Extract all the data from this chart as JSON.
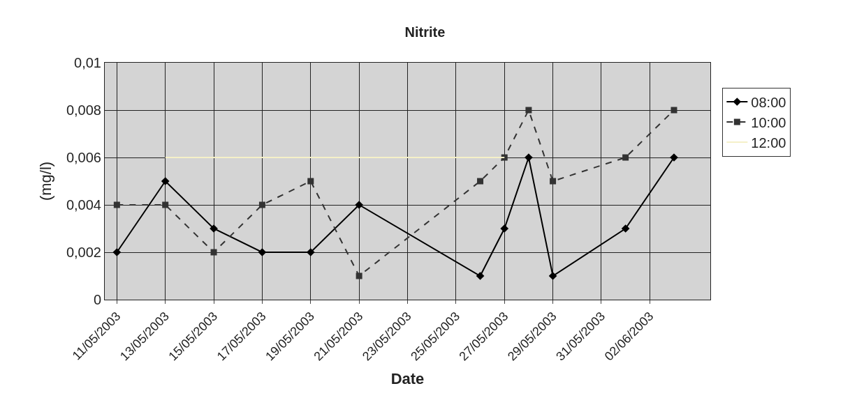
{
  "chart_data": {
    "type": "line",
    "title": "Nitrite",
    "xlabel": "Date",
    "ylabel": "(mg/l)",
    "xlim": [
      "2003-05-10T12:00",
      "2003-06-04T12:00"
    ],
    "xticks": [
      {
        "value": "2003-05-11",
        "label": "11/05/2003"
      },
      {
        "value": "2003-05-13",
        "label": "13/05/2003"
      },
      {
        "value": "2003-05-15",
        "label": "15/05/2003"
      },
      {
        "value": "2003-05-17",
        "label": "17/05/2003"
      },
      {
        "value": "2003-05-19",
        "label": "19/05/2003"
      },
      {
        "value": "2003-05-21",
        "label": "21/05/2003"
      },
      {
        "value": "2003-05-23",
        "label": "23/05/2003"
      },
      {
        "value": "2003-05-25",
        "label": "25/05/2003"
      },
      {
        "value": "2003-05-27",
        "label": "27/05/2003"
      },
      {
        "value": "2003-05-29",
        "label": "29/05/2003"
      },
      {
        "value": "2003-05-31",
        "label": "31/05/2003"
      },
      {
        "value": "2003-06-02",
        "label": "02/06/2003"
      }
    ],
    "ylim": [
      0,
      0.01
    ],
    "yticks": [
      0,
      {
        "value": 0.002,
        "label": "0,002"
      },
      {
        "value": 0.004,
        "label": "0,004"
      },
      {
        "value": 0.006,
        "label": "0,006"
      },
      {
        "value": 0.008,
        "label": "0,008"
      },
      {
        "value": 0.01,
        "label": "0,01"
      }
    ],
    "grid": true,
    "legend": "right",
    "series": [
      {
        "name": "08:00",
        "color": "#000000",
        "marker": "diamond",
        "line_style": "solid",
        "x": [
          "2003-05-11",
          "2003-05-13",
          "2003-05-15",
          "2003-05-17",
          "2003-05-19",
          "2003-05-21",
          "2003-05-26",
          "2003-05-27",
          "2003-05-28",
          "2003-05-29",
          "2003-06-01",
          "2003-06-03"
        ],
        "values": [
          0.002,
          0.005,
          0.003,
          0.002,
          0.002,
          0.004,
          0.001,
          0.003,
          0.006,
          0.001,
          0.003,
          0.006
        ]
      },
      {
        "name": "10:00",
        "color": "#333333",
        "marker": "square",
        "line_style": "dashed",
        "x": [
          "2003-05-11",
          "2003-05-13",
          "2003-05-15",
          "2003-05-17",
          "2003-05-19",
          "2003-05-21",
          "2003-05-26",
          "2003-05-27",
          "2003-05-28",
          "2003-05-29",
          "2003-06-01",
          "2003-06-03"
        ],
        "values": [
          0.004,
          0.004,
          0.002,
          0.004,
          0.005,
          0.001,
          0.005,
          0.006,
          0.008,
          0.005,
          0.006,
          0.008
        ]
      },
      {
        "name": "12:00",
        "color": "#f5f0c8",
        "marker": "none",
        "line_style": "solid",
        "x": [
          "2003-05-13",
          "2003-05-26",
          "2003-05-27"
        ],
        "values": [
          0.006,
          0.006,
          0.006
        ]
      }
    ]
  }
}
